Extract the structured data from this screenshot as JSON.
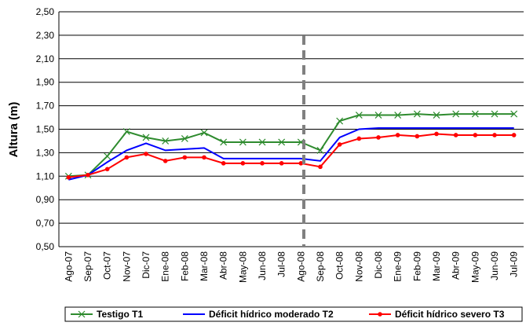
{
  "chart_data": {
    "type": "line",
    "y_label": "Altura (m)",
    "categories": [
      "Ago-07",
      "Sep-07",
      "Oct-07",
      "Nov-07",
      "Dic-07",
      "Ene-08",
      "Feb-08",
      "Mar-08",
      "Abr-08",
      "May-08",
      "Jun-08",
      "Jul-08",
      "Ago-08",
      "Sep-08",
      "Oct-08",
      "Nov-08",
      "Dic-08",
      "Ene-09",
      "Feb-09",
      "Mar-09",
      "Abr-09",
      "May-09",
      "Jun-09",
      "Jul-09"
    ],
    "series": [
      {
        "name": "Testigo T1",
        "color": "#2e8b2e",
        "marker": "x",
        "values": [
          1.1,
          1.11,
          1.27,
          1.48,
          1.43,
          1.4,
          1.42,
          1.47,
          1.39,
          1.39,
          1.39,
          1.39,
          1.39,
          1.32,
          1.57,
          1.62,
          1.62,
          1.62,
          1.63,
          1.62,
          1.63,
          1.63,
          1.63,
          1.63
        ]
      },
      {
        "name": "Déficit hídrico moderado T2",
        "color": "#0000ff",
        "marker": "none",
        "values": [
          1.07,
          1.11,
          1.22,
          1.32,
          1.38,
          1.32,
          1.33,
          1.34,
          1.25,
          1.25,
          1.25,
          1.25,
          1.25,
          1.23,
          1.43,
          1.5,
          1.51,
          1.51,
          1.51,
          1.51,
          1.51,
          1.51,
          1.51,
          1.51
        ]
      },
      {
        "name": "Déficit hídrico severo T3",
        "color": "#ff0000",
        "marker": "circle",
        "values": [
          1.09,
          1.11,
          1.16,
          1.26,
          1.29,
          1.23,
          1.26,
          1.26,
          1.21,
          1.21,
          1.21,
          1.21,
          1.21,
          1.18,
          1.37,
          1.42,
          1.43,
          1.45,
          1.44,
          1.46,
          1.45,
          1.45,
          1.45,
          1.45
        ]
      }
    ],
    "ylim": [
      0.5,
      2.5
    ],
    "yticks": [
      {
        "value": 0.5,
        "label": "0,50"
      },
      {
        "value": 0.7,
        "label": "0,70"
      },
      {
        "value": 0.9,
        "label": "0,90"
      },
      {
        "value": 1.1,
        "label": "1,10"
      },
      {
        "value": 1.3,
        "label": "1,30"
      },
      {
        "value": 1.5,
        "label": "1,50"
      },
      {
        "value": 1.7,
        "label": "1,70"
      },
      {
        "value": 1.9,
        "label": "1,90"
      },
      {
        "value": 2.1,
        "label": "2,10"
      },
      {
        "value": 2.3,
        "label": "2,30"
      },
      {
        "value": 2.5,
        "label": "2,50"
      }
    ],
    "grid": true
  }
}
